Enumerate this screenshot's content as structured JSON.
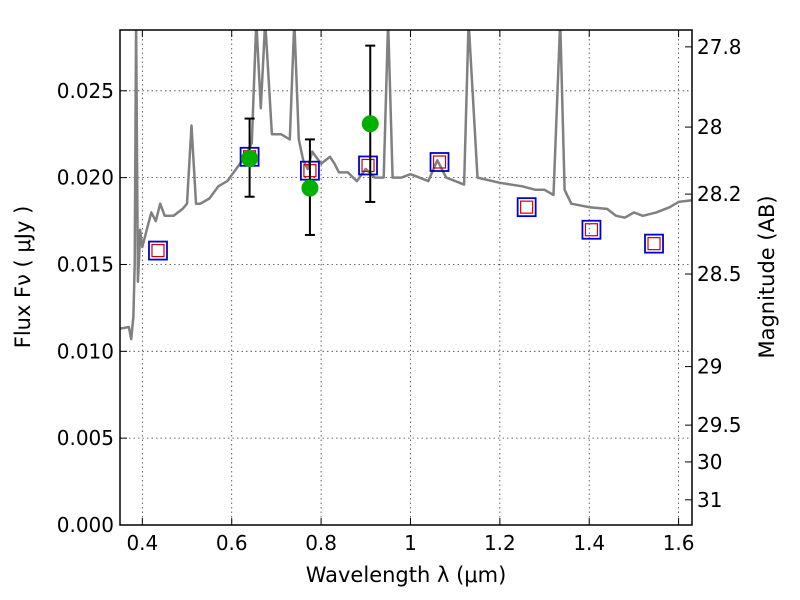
{
  "chart_data": {
    "type": "scatter",
    "xlabel": "Wavelength  λ (μm)",
    "ylabel": "Flux  Fν  ( μJy )",
    "y2label": "Magnitude (AB)",
    "xlim": [
      0.35,
      1.63
    ],
    "ylim": [
      0.0,
      0.0285
    ],
    "x_ticks": [
      0.4,
      0.6,
      0.8,
      1.0,
      1.2,
      1.4,
      1.6
    ],
    "x_tick_labels": [
      "0.4",
      "0.6",
      "0.8",
      "1",
      "1.2",
      "1.4",
      "1.6"
    ],
    "y_ticks": [
      0.0,
      0.005,
      0.01,
      0.015,
      0.02,
      0.025
    ],
    "y_tick_labels": [
      "0.000",
      "0.005",
      "0.010",
      "0.015",
      "0.020",
      "0.025"
    ],
    "y2_ticks": [
      {
        "label": "27.8",
        "flux": 0.02753
      },
      {
        "label": "28",
        "flux": 0.02291
      },
      {
        "label": "28.2",
        "flux": 0.01905
      },
      {
        "label": "28.5",
        "flux": 0.01445
      },
      {
        "label": "29",
        "flux": 0.00912
      },
      {
        "label": "29.5",
        "flux": 0.00575
      },
      {
        "label": "30",
        "flux": 0.00363
      },
      {
        "label": "31",
        "flux": 0.00145
      }
    ],
    "grid": true,
    "colors": {
      "spectrum": "#808080",
      "observed": "#00b000",
      "model_box": "#0000cc",
      "model_inner": "#cc0000",
      "errorbar": "#000000"
    },
    "series": [
      {
        "role": "template spectrum",
        "style": "line",
        "x": [
          0.35,
          0.37,
          0.375,
          0.38,
          0.383,
          0.386,
          0.39,
          0.393,
          0.395,
          0.4,
          0.41,
          0.42,
          0.43,
          0.44,
          0.45,
          0.47,
          0.49,
          0.5,
          0.51,
          0.52,
          0.53,
          0.55,
          0.57,
          0.59,
          0.61,
          0.63,
          0.645,
          0.655,
          0.665,
          0.675,
          0.69,
          0.71,
          0.73,
          0.74,
          0.75,
          0.76,
          0.77,
          0.78,
          0.8,
          0.82,
          0.83,
          0.84,
          0.86,
          0.88,
          0.9,
          0.92,
          0.94,
          0.95,
          0.96,
          0.98,
          1.0,
          1.02,
          1.04,
          1.06,
          1.08,
          1.1,
          1.12,
          1.13,
          1.15,
          1.2,
          1.25,
          1.28,
          1.3,
          1.32,
          1.335,
          1.345,
          1.36,
          1.4,
          1.44,
          1.46,
          1.48,
          1.5,
          1.52,
          1.55,
          1.58,
          1.6,
          1.63
        ],
        "y": [
          0.0113,
          0.0114,
          0.0107,
          0.012,
          0.015,
          0.029,
          0.014,
          0.0155,
          0.017,
          0.016,
          0.017,
          0.018,
          0.0175,
          0.0185,
          0.0178,
          0.0178,
          0.0182,
          0.0185,
          0.023,
          0.0185,
          0.0185,
          0.0188,
          0.0195,
          0.0198,
          0.0205,
          0.0212,
          0.022,
          0.029,
          0.024,
          0.029,
          0.0225,
          0.0225,
          0.0222,
          0.029,
          0.0222,
          0.021,
          0.0205,
          0.0215,
          0.0208,
          0.0212,
          0.0208,
          0.0203,
          0.0203,
          0.0198,
          0.0205,
          0.02,
          0.02,
          0.029,
          0.02,
          0.02,
          0.0202,
          0.02,
          0.0198,
          0.021,
          0.02,
          0.0198,
          0.0196,
          0.029,
          0.02,
          0.0197,
          0.0195,
          0.0193,
          0.0193,
          0.019,
          0.029,
          0.0193,
          0.0185,
          0.0183,
          0.0182,
          0.0178,
          0.0177,
          0.018,
          0.0178,
          0.018,
          0.0183,
          0.0186,
          0.0187
        ]
      },
      {
        "role": "observed photometry",
        "style": "markers-errorbars",
        "x": [
          0.64,
          0.775,
          0.91
        ],
        "y": [
          0.0211,
          0.0194,
          0.0231
        ],
        "yerr_low": [
          0.0022,
          0.0027,
          0.0045
        ],
        "yerr_high": [
          0.0023,
          0.0028,
          0.0045
        ]
      },
      {
        "role": "model photometry",
        "style": "open-squares",
        "x": [
          0.435,
          0.64,
          0.775,
          0.905,
          1.065,
          1.26,
          1.405,
          1.545
        ],
        "y": [
          0.0158,
          0.0212,
          0.0204,
          0.0207,
          0.0209,
          0.0183,
          0.017,
          0.0162
        ]
      }
    ]
  }
}
